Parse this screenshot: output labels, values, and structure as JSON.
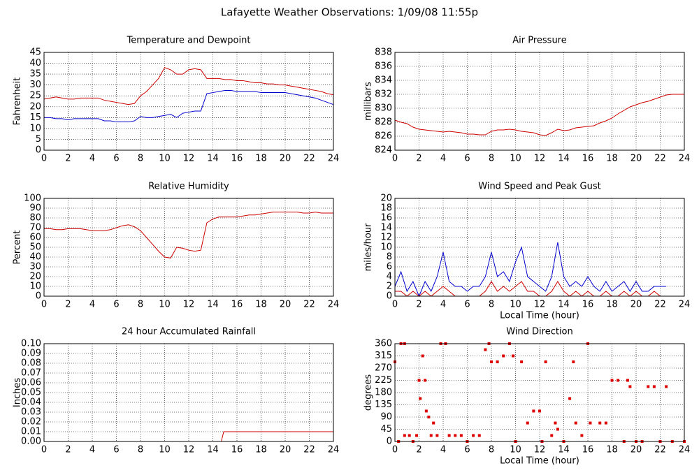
{
  "title": "Lafayette Weather Observations: 1/09/08 11:55p",
  "chart_data": [
    {
      "type": "line",
      "title": "Temperature and Dewpoint",
      "y_label": "Fahrenheit",
      "grid": true,
      "x": [
        0,
        0.5,
        1,
        1.5,
        2,
        2.5,
        3,
        3.5,
        4,
        4.5,
        5,
        5.5,
        6,
        6.5,
        7,
        7.5,
        8,
        8.5,
        9,
        9.5,
        10,
        10.5,
        11,
        11.5,
        12,
        12.5,
        13,
        13.5,
        14,
        14.5,
        15,
        15.5,
        16,
        16.5,
        17,
        17.5,
        18,
        18.5,
        19,
        19.5,
        20,
        20.5,
        21,
        21.5,
        22,
        22.5,
        23,
        23.5,
        24
      ],
      "xlim": [
        0,
        24
      ],
      "xticks": [
        0,
        2,
        4,
        6,
        8,
        10,
        12,
        14,
        16,
        18,
        20,
        22,
        24
      ],
      "ylim": [
        0,
        45
      ],
      "yticks": [
        0,
        5,
        10,
        15,
        20,
        25,
        30,
        35,
        40,
        45
      ],
      "series": [
        {
          "color": "#cc0000",
          "values": [
            23.5,
            24,
            24.5,
            24,
            23.5,
            23.5,
            24,
            24,
            24,
            24,
            23,
            22.5,
            22,
            21.5,
            21,
            21.5,
            25,
            27,
            30,
            33,
            38,
            37,
            35,
            35,
            37,
            37.5,
            37,
            33,
            33,
            33,
            32.5,
            32.5,
            32,
            32,
            31.5,
            31,
            31,
            30.5,
            30.5,
            30,
            30,
            29.5,
            29,
            28.5,
            28,
            27.5,
            27,
            26,
            25.5
          ]
        },
        {
          "color": "#0000cc",
          "values": [
            15,
            15,
            14.5,
            14.5,
            14,
            14.5,
            14.5,
            14.5,
            14.5,
            14.5,
            13.5,
            13.5,
            13,
            13,
            13,
            13.5,
            15.5,
            15,
            15,
            15.5,
            16,
            16.5,
            15,
            17,
            17.5,
            18,
            18,
            26,
            26.5,
            27,
            27.5,
            27.5,
            27,
            27,
            27,
            27,
            26.5,
            26.5,
            26.5,
            26.5,
            26.5,
            26,
            25.5,
            25,
            24.5,
            24,
            23,
            22,
            21
          ]
        }
      ]
    },
    {
      "type": "line",
      "title": "Air Pressure",
      "y_label": "millibars",
      "grid": true,
      "x": [
        0,
        0.5,
        1,
        1.5,
        2,
        2.5,
        3,
        3.5,
        4,
        4.5,
        5,
        5.5,
        6,
        6.5,
        7,
        7.5,
        8,
        8.5,
        9,
        9.5,
        10,
        10.5,
        11,
        11.5,
        12,
        12.5,
        13,
        13.5,
        14,
        14.5,
        15,
        15.5,
        16,
        16.5,
        17,
        17.5,
        18,
        18.5,
        19,
        19.5,
        20,
        20.5,
        21,
        21.5,
        22,
        22.5,
        23,
        23.5,
        24
      ],
      "xlim": [
        0,
        24
      ],
      "xticks": [
        0,
        2,
        4,
        6,
        8,
        10,
        12,
        14,
        16,
        18,
        20,
        22,
        24
      ],
      "ylim": [
        824,
        838
      ],
      "yticks": [
        824,
        826,
        828,
        830,
        832,
        834,
        836,
        838
      ],
      "series": [
        {
          "color": "#cc0000",
          "values": [
            828.3,
            828,
            827.8,
            827.3,
            827,
            826.9,
            826.8,
            826.7,
            826.6,
            826.7,
            826.6,
            826.5,
            826.3,
            826.3,
            826.2,
            826.2,
            826.7,
            826.9,
            826.9,
            827,
            826.9,
            826.7,
            826.6,
            826.5,
            826.2,
            826.1,
            826.5,
            827,
            826.8,
            826.9,
            827.2,
            827.3,
            827.4,
            827.5,
            827.9,
            828.2,
            828.6,
            829.2,
            829.7,
            830.2,
            830.5,
            830.8,
            831,
            831.3,
            831.6,
            831.9,
            832,
            832,
            832
          ]
        }
      ]
    },
    {
      "type": "line",
      "title": "Relative Humidity",
      "y_label": "Percent",
      "grid": true,
      "x": [
        0,
        0.5,
        1,
        1.5,
        2,
        2.5,
        3,
        3.5,
        4,
        4.5,
        5,
        5.5,
        6,
        6.5,
        7,
        7.5,
        8,
        8.5,
        9,
        9.5,
        10,
        10.5,
        11,
        11.5,
        12,
        12.5,
        13,
        13.5,
        14,
        14.5,
        15,
        15.5,
        16,
        16.5,
        17,
        17.5,
        18,
        18.5,
        19,
        19.5,
        20,
        20.5,
        21,
        21.5,
        22,
        22.5,
        23,
        23.5,
        24
      ],
      "xlim": [
        0,
        24
      ],
      "xticks": [
        0,
        2,
        4,
        6,
        8,
        10,
        12,
        14,
        16,
        18,
        20,
        22,
        24
      ],
      "ylim": [
        0,
        100
      ],
      "yticks": [
        0,
        10,
        20,
        30,
        40,
        50,
        60,
        70,
        80,
        90,
        100
      ],
      "series": [
        {
          "color": "#cc0000",
          "values": [
            69,
            69,
            68,
            68,
            69,
            69,
            69,
            68,
            67,
            67,
            67,
            68,
            70,
            72,
            73,
            71,
            67,
            60,
            53,
            46,
            40,
            39,
            50,
            49,
            47,
            46,
            47,
            75,
            79,
            81,
            81,
            81,
            81,
            82,
            83,
            83,
            84,
            85,
            86,
            86,
            86,
            86,
            86,
            85,
            85,
            86,
            85,
            85,
            85
          ]
        }
      ]
    },
    {
      "type": "line",
      "title": "Wind Speed and Peak Gust",
      "y_label": "miles/hour",
      "x_label": "Local Time (hour)",
      "grid": true,
      "x": [
        0,
        0.5,
        1,
        1.5,
        2,
        2.5,
        3,
        3.5,
        4,
        4.5,
        5,
        5.5,
        6,
        6.5,
        7,
        7.5,
        8,
        8.5,
        9,
        9.5,
        10,
        10.5,
        11,
        11.5,
        12,
        12.5,
        13,
        13.5,
        14,
        14.5,
        15,
        15.5,
        16,
        16.5,
        17,
        17.5,
        18,
        18.5,
        19,
        19.5,
        20,
        20.5,
        21,
        21.5,
        22,
        22.5
      ],
      "xlim": [
        0,
        24
      ],
      "xticks": [
        0,
        2,
        4,
        6,
        8,
        10,
        12,
        14,
        16,
        18,
        20,
        22,
        24
      ],
      "ylim": [
        0,
        20
      ],
      "yticks": [
        0,
        2,
        4,
        6,
        8,
        10,
        12,
        14,
        16,
        18,
        20
      ],
      "series": [
        {
          "color": "#0000cc",
          "values": [
            2,
            5,
            1,
            3,
            0,
            3,
            1,
            4,
            9,
            3,
            2,
            2,
            1,
            2,
            2,
            4,
            9,
            4,
            5,
            3,
            7,
            10,
            4,
            3,
            2,
            1,
            4,
            11,
            4,
            2,
            3,
            2,
            4,
            2,
            1,
            3,
            1,
            2,
            3,
            1,
            3,
            1,
            1,
            2,
            2,
            2
          ]
        },
        {
          "color": "#cc0000",
          "values": [
            1,
            1,
            0,
            1,
            0,
            1,
            0,
            1,
            2,
            1,
            0,
            0,
            0,
            0,
            0,
            1,
            3,
            1,
            2,
            1,
            2,
            3,
            1,
            1,
            0,
            0,
            1,
            3,
            1,
            0,
            1,
            0,
            1,
            0,
            0,
            1,
            0,
            0,
            1,
            0,
            1,
            0,
            0,
            1,
            0,
            0
          ]
        }
      ]
    },
    {
      "type": "line",
      "title": "24 hour Accumulated Rainfall",
      "y_label": "Inches",
      "grid": true,
      "x": [
        0,
        14.7,
        14.9,
        24
      ],
      "xlim": [
        0,
        24
      ],
      "xticks": [
        0,
        2,
        4,
        6,
        8,
        10,
        12,
        14,
        16,
        18,
        20,
        22,
        24
      ],
      "ylim": [
        0,
        0.1
      ],
      "yticks": [
        {
          "value": 0,
          "label": "0.00"
        },
        {
          "value": 0.01,
          "label": "0.01"
        },
        {
          "value": 0.02,
          "label": "0.02"
        },
        {
          "value": 0.03,
          "label": "0.03"
        },
        {
          "value": 0.04,
          "label": "0.04"
        },
        {
          "value": 0.05,
          "label": "0.05"
        },
        {
          "value": 0.06,
          "label": "0.06"
        },
        {
          "value": 0.07,
          "label": "0.07"
        },
        {
          "value": 0.08,
          "label": "0.08"
        },
        {
          "value": 0.09,
          "label": "0.09"
        },
        {
          "value": 0.1,
          "label": "0.10"
        }
      ],
      "series": [
        {
          "color": "#cc0000",
          "values": [
            0,
            0,
            0.01,
            0.01
          ]
        }
      ]
    },
    {
      "type": "scatter",
      "title": "Wind Direction",
      "y_label": "degrees",
      "x_label": "Local Time (hour)",
      "grid": true,
      "x": [
        0,
        0.3,
        0.5,
        0.8,
        0.8,
        1.2,
        1.5,
        1.8,
        2,
        2.1,
        2.3,
        2.5,
        2.6,
        2.8,
        3,
        3.2,
        3.5,
        3.8,
        4.2,
        4.5,
        5,
        5.5,
        6,
        6.5,
        7,
        7.5,
        7.8,
        8,
        8.5,
        9,
        9.5,
        9.8,
        10,
        10.5,
        11,
        11.5,
        12,
        12.2,
        12.5,
        13,
        13.3,
        13.5,
        14,
        14.5,
        14.8,
        15,
        15.5,
        16,
        16.2,
        17,
        17.5,
        18,
        18.5,
        19,
        19.3,
        19.5,
        20,
        20.5,
        21,
        21.5,
        22,
        22.5,
        23,
        24
      ],
      "xlim": [
        0,
        24
      ],
      "xticks": [
        0,
        2,
        4,
        6,
        8,
        10,
        12,
        14,
        16,
        18,
        20,
        22,
        24
      ],
      "ylim": [
        0,
        360
      ],
      "yticks": [
        0,
        45,
        90,
        135,
        180,
        225,
        270,
        315,
        360
      ],
      "series": [
        {
          "color": "#dd0000",
          "values": [
            293,
            0,
            360,
            360,
            22,
            22,
            0,
            22,
            225,
            158,
            315,
            225,
            112,
            90,
            22,
            68,
            22,
            360,
            360,
            22,
            22,
            22,
            0,
            22,
            22,
            338,
            360,
            293,
            293,
            315,
            360,
            315,
            0,
            293,
            68,
            112,
            112,
            0,
            293,
            22,
            68,
            45,
            0,
            158,
            293,
            68,
            22,
            360,
            68,
            68,
            68,
            225,
            225,
            0,
            225,
            202,
            0,
            0,
            202,
            202,
            0,
            202,
            0,
            0
          ]
        }
      ]
    }
  ]
}
